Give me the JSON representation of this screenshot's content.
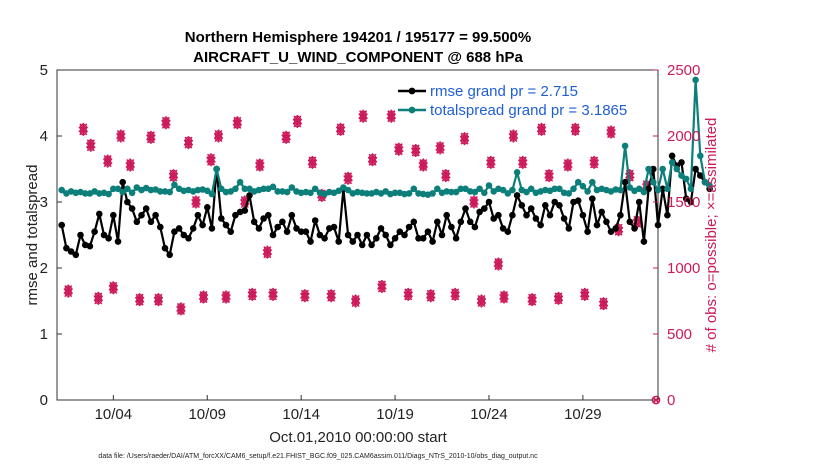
{
  "chart_data": {
    "type": "line",
    "title_line1": "Northern Hemisphere 194201 / 195177 = 99.500%",
    "title_line2": "AIRCRAFT_U_WIND_COMPONENT @ 688 hPa",
    "xlabel": "Oct.01,2010 00:00:00 start",
    "ylabel": "rmse and totalspread",
    "y2label": "# of obs: o=possible; ×=assimilated",
    "footnote": "data file: /Users/raeder/DAI/ATM_forcXX/CAM6_setup/f.e21.FHIST_BGC.f09_025.CAM6assim.011/Diags_NTrS_2010-10/obs_diag_output.nc",
    "xlim": [
      1.0,
      33.0
    ],
    "ylim": [
      0,
      5
    ],
    "y2lim": [
      0,
      2500
    ],
    "x_ticks": [
      4,
      9,
      14,
      19,
      24,
      29
    ],
    "x_tick_labels": [
      "10/04",
      "10/09",
      "10/14",
      "10/19",
      "10/24",
      "10/29"
    ],
    "y_ticks": [
      0,
      1,
      2,
      3,
      4,
      5
    ],
    "y_tick_labels": [
      "0",
      "1",
      "2",
      "3",
      "4",
      "5"
    ],
    "y2_ticks": [
      0,
      500,
      1000,
      1500,
      2000,
      2500
    ],
    "y2_tick_labels": [
      "0",
      "500",
      "1000",
      "1500",
      "2000",
      "2500"
    ],
    "x_start": 1.25,
    "x_step": 0.25,
    "series": [
      {
        "name": "rmse grand pr = 2.715",
        "color": "#000000",
        "axis": "left",
        "values": [
          2.65,
          2.3,
          2.25,
          2.2,
          2.5,
          2.35,
          2.33,
          2.55,
          2.82,
          2.5,
          2.45,
          2.8,
          2.4,
          3.3,
          3.0,
          2.9,
          2.7,
          2.8,
          2.9,
          2.7,
          2.8,
          2.62,
          2.3,
          2.2,
          2.55,
          2.6,
          2.5,
          2.45,
          2.6,
          2.8,
          2.65,
          2.92,
          2.6,
          3.5,
          2.75,
          2.65,
          2.55,
          2.8,
          2.85,
          2.87,
          3.1,
          2.7,
          2.6,
          2.75,
          2.8,
          2.5,
          2.62,
          2.7,
          2.55,
          2.8,
          2.6,
          2.55,
          2.55,
          2.4,
          2.72,
          2.5,
          2.45,
          2.6,
          2.62,
          2.4,
          3.2,
          2.5,
          2.4,
          2.5,
          2.35,
          2.5,
          2.35,
          2.45,
          2.6,
          2.5,
          2.35,
          2.45,
          2.55,
          2.5,
          2.62,
          2.7,
          2.45,
          2.45,
          2.55,
          2.4,
          2.7,
          2.5,
          2.8,
          2.62,
          2.45,
          2.7,
          2.9,
          2.7,
          2.62,
          2.85,
          2.9,
          3.0,
          2.75,
          2.8,
          2.6,
          2.55,
          2.8,
          3.1,
          2.95,
          2.8,
          2.9,
          2.75,
          2.65,
          2.95,
          2.8,
          3.0,
          2.95,
          2.75,
          2.6,
          3.0,
          3.02,
          2.8,
          2.55,
          3.05,
          2.65,
          2.85,
          2.7,
          2.55,
          2.6,
          2.8,
          3.3,
          2.7,
          2.6,
          3.0,
          2.4,
          3.2,
          3.5,
          2.65,
          3.2,
          2.8,
          3.7,
          3.55,
          3.6,
          3.05,
          3.0,
          3.5,
          3.4,
          3.3,
          3.2
        ]
      },
      {
        "name": "totalspread grand pr = 3.1865",
        "color": "#0c7f7a",
        "axis": "left",
        "values": [
          3.18,
          3.13,
          3.16,
          3.14,
          3.15,
          3.13,
          3.13,
          3.16,
          3.13,
          3.14,
          3.12,
          3.2,
          3.2,
          3.15,
          3.2,
          3.14,
          3.22,
          3.18,
          3.21,
          3.18,
          3.19,
          3.16,
          3.16,
          3.15,
          3.26,
          3.2,
          3.17,
          3.18,
          3.16,
          3.18,
          3.19,
          3.17,
          3.12,
          3.5,
          3.2,
          3.15,
          3.16,
          3.2,
          3.3,
          3.2,
          3.2,
          3.16,
          3.18,
          3.2,
          3.2,
          3.23,
          3.16,
          3.16,
          3.15,
          3.22,
          3.16,
          3.14,
          3.15,
          3.14,
          3.2,
          3.14,
          3.12,
          3.15,
          3.14,
          3.17,
          3.22,
          3.18,
          3.13,
          3.15,
          3.14,
          3.13,
          3.13,
          3.15,
          3.13,
          3.16,
          3.12,
          3.14,
          3.14,
          3.12,
          3.13,
          3.2,
          3.13,
          3.12,
          3.11,
          3.13,
          3.2,
          3.14,
          3.16,
          3.15,
          3.15,
          3.2,
          3.2,
          3.16,
          3.15,
          3.2,
          3.14,
          3.25,
          3.16,
          3.2,
          3.18,
          3.13,
          3.18,
          3.45,
          3.18,
          3.15,
          3.2,
          3.14,
          3.16,
          3.18,
          3.17,
          3.2,
          3.2,
          3.14,
          3.13,
          3.2,
          3.3,
          3.24,
          3.16,
          3.3,
          3.18,
          3.2,
          3.18,
          3.16,
          3.19,
          3.18,
          3.85,
          3.22,
          3.17,
          3.2,
          3.15,
          3.5,
          3.3,
          3.18,
          3.5,
          3.2,
          3.6,
          3.5,
          3.4,
          3.35,
          3.2,
          4.85,
          3.7,
          3.3,
          3.25
        ]
      }
    ],
    "obs_clusters": [
      {
        "x": 1.6,
        "n": 825
      },
      {
        "x": 2.4,
        "n": 2050
      },
      {
        "x": 2.8,
        "n": 1930
      },
      {
        "x": 3.2,
        "n": 770
      },
      {
        "x": 3.7,
        "n": 1810
      },
      {
        "x": 4.0,
        "n": 850
      },
      {
        "x": 4.4,
        "n": 2000
      },
      {
        "x": 4.9,
        "n": 1780
      },
      {
        "x": 5.4,
        "n": 760
      },
      {
        "x": 6.0,
        "n": 1990
      },
      {
        "x": 6.4,
        "n": 760
      },
      {
        "x": 6.8,
        "n": 2100
      },
      {
        "x": 7.2,
        "n": 1700
      },
      {
        "x": 7.6,
        "n": 690
      },
      {
        "x": 8.0,
        "n": 1950
      },
      {
        "x": 8.4,
        "n": 1500
      },
      {
        "x": 8.8,
        "n": 780
      },
      {
        "x": 9.2,
        "n": 1820
      },
      {
        "x": 9.6,
        "n": 2000
      },
      {
        "x": 10.0,
        "n": 780
      },
      {
        "x": 10.6,
        "n": 2100
      },
      {
        "x": 11.0,
        "n": 1500
      },
      {
        "x": 11.4,
        "n": 800
      },
      {
        "x": 11.8,
        "n": 1780
      },
      {
        "x": 12.2,
        "n": 1120
      },
      {
        "x": 12.5,
        "n": 800
      },
      {
        "x": 13.2,
        "n": 1990
      },
      {
        "x": 13.8,
        "n": 2110
      },
      {
        "x": 14.2,
        "n": 790
      },
      {
        "x": 14.6,
        "n": 1800
      },
      {
        "x": 15.1,
        "n": 1550
      },
      {
        "x": 15.6,
        "n": 790
      },
      {
        "x": 16.1,
        "n": 2050
      },
      {
        "x": 16.5,
        "n": 1680
      },
      {
        "x": 16.9,
        "n": 750
      },
      {
        "x": 17.3,
        "n": 2150
      },
      {
        "x": 17.8,
        "n": 1820
      },
      {
        "x": 18.3,
        "n": 860
      },
      {
        "x": 18.8,
        "n": 2150
      },
      {
        "x": 19.2,
        "n": 1900
      },
      {
        "x": 19.7,
        "n": 800
      },
      {
        "x": 20.1,
        "n": 1890
      },
      {
        "x": 20.5,
        "n": 1780
      },
      {
        "x": 20.9,
        "n": 790
      },
      {
        "x": 21.4,
        "n": 1910
      },
      {
        "x": 21.7,
        "n": 1700
      },
      {
        "x": 22.2,
        "n": 800
      },
      {
        "x": 22.7,
        "n": 1980
      },
      {
        "x": 23.2,
        "n": 1500
      },
      {
        "x": 23.6,
        "n": 750
      },
      {
        "x": 24.1,
        "n": 1800
      },
      {
        "x": 24.5,
        "n": 1030
      },
      {
        "x": 24.8,
        "n": 780
      },
      {
        "x": 25.3,
        "n": 2000
      },
      {
        "x": 25.8,
        "n": 1800
      },
      {
        "x": 26.3,
        "n": 760
      },
      {
        "x": 26.8,
        "n": 2050
      },
      {
        "x": 27.2,
        "n": 1700
      },
      {
        "x": 27.7,
        "n": 770
      },
      {
        "x": 28.2,
        "n": 1780
      },
      {
        "x": 28.6,
        "n": 2050
      },
      {
        "x": 29.1,
        "n": 800
      },
      {
        "x": 29.6,
        "n": 1800
      },
      {
        "x": 30.1,
        "n": 730
      },
      {
        "x": 30.5,
        "n": 2030
      },
      {
        "x": 30.9,
        "n": 1290
      },
      {
        "x": 31.5,
        "n": 1700
      },
      {
        "x": 31.9,
        "n": 1350
      },
      {
        "x": 32.4,
        "n": 1620
      }
    ],
    "last_obs": {
      "x": 33.0,
      "n": 0
    },
    "obs_color": "#cc1a5a",
    "legend": {
      "position": "top-right"
    }
  }
}
